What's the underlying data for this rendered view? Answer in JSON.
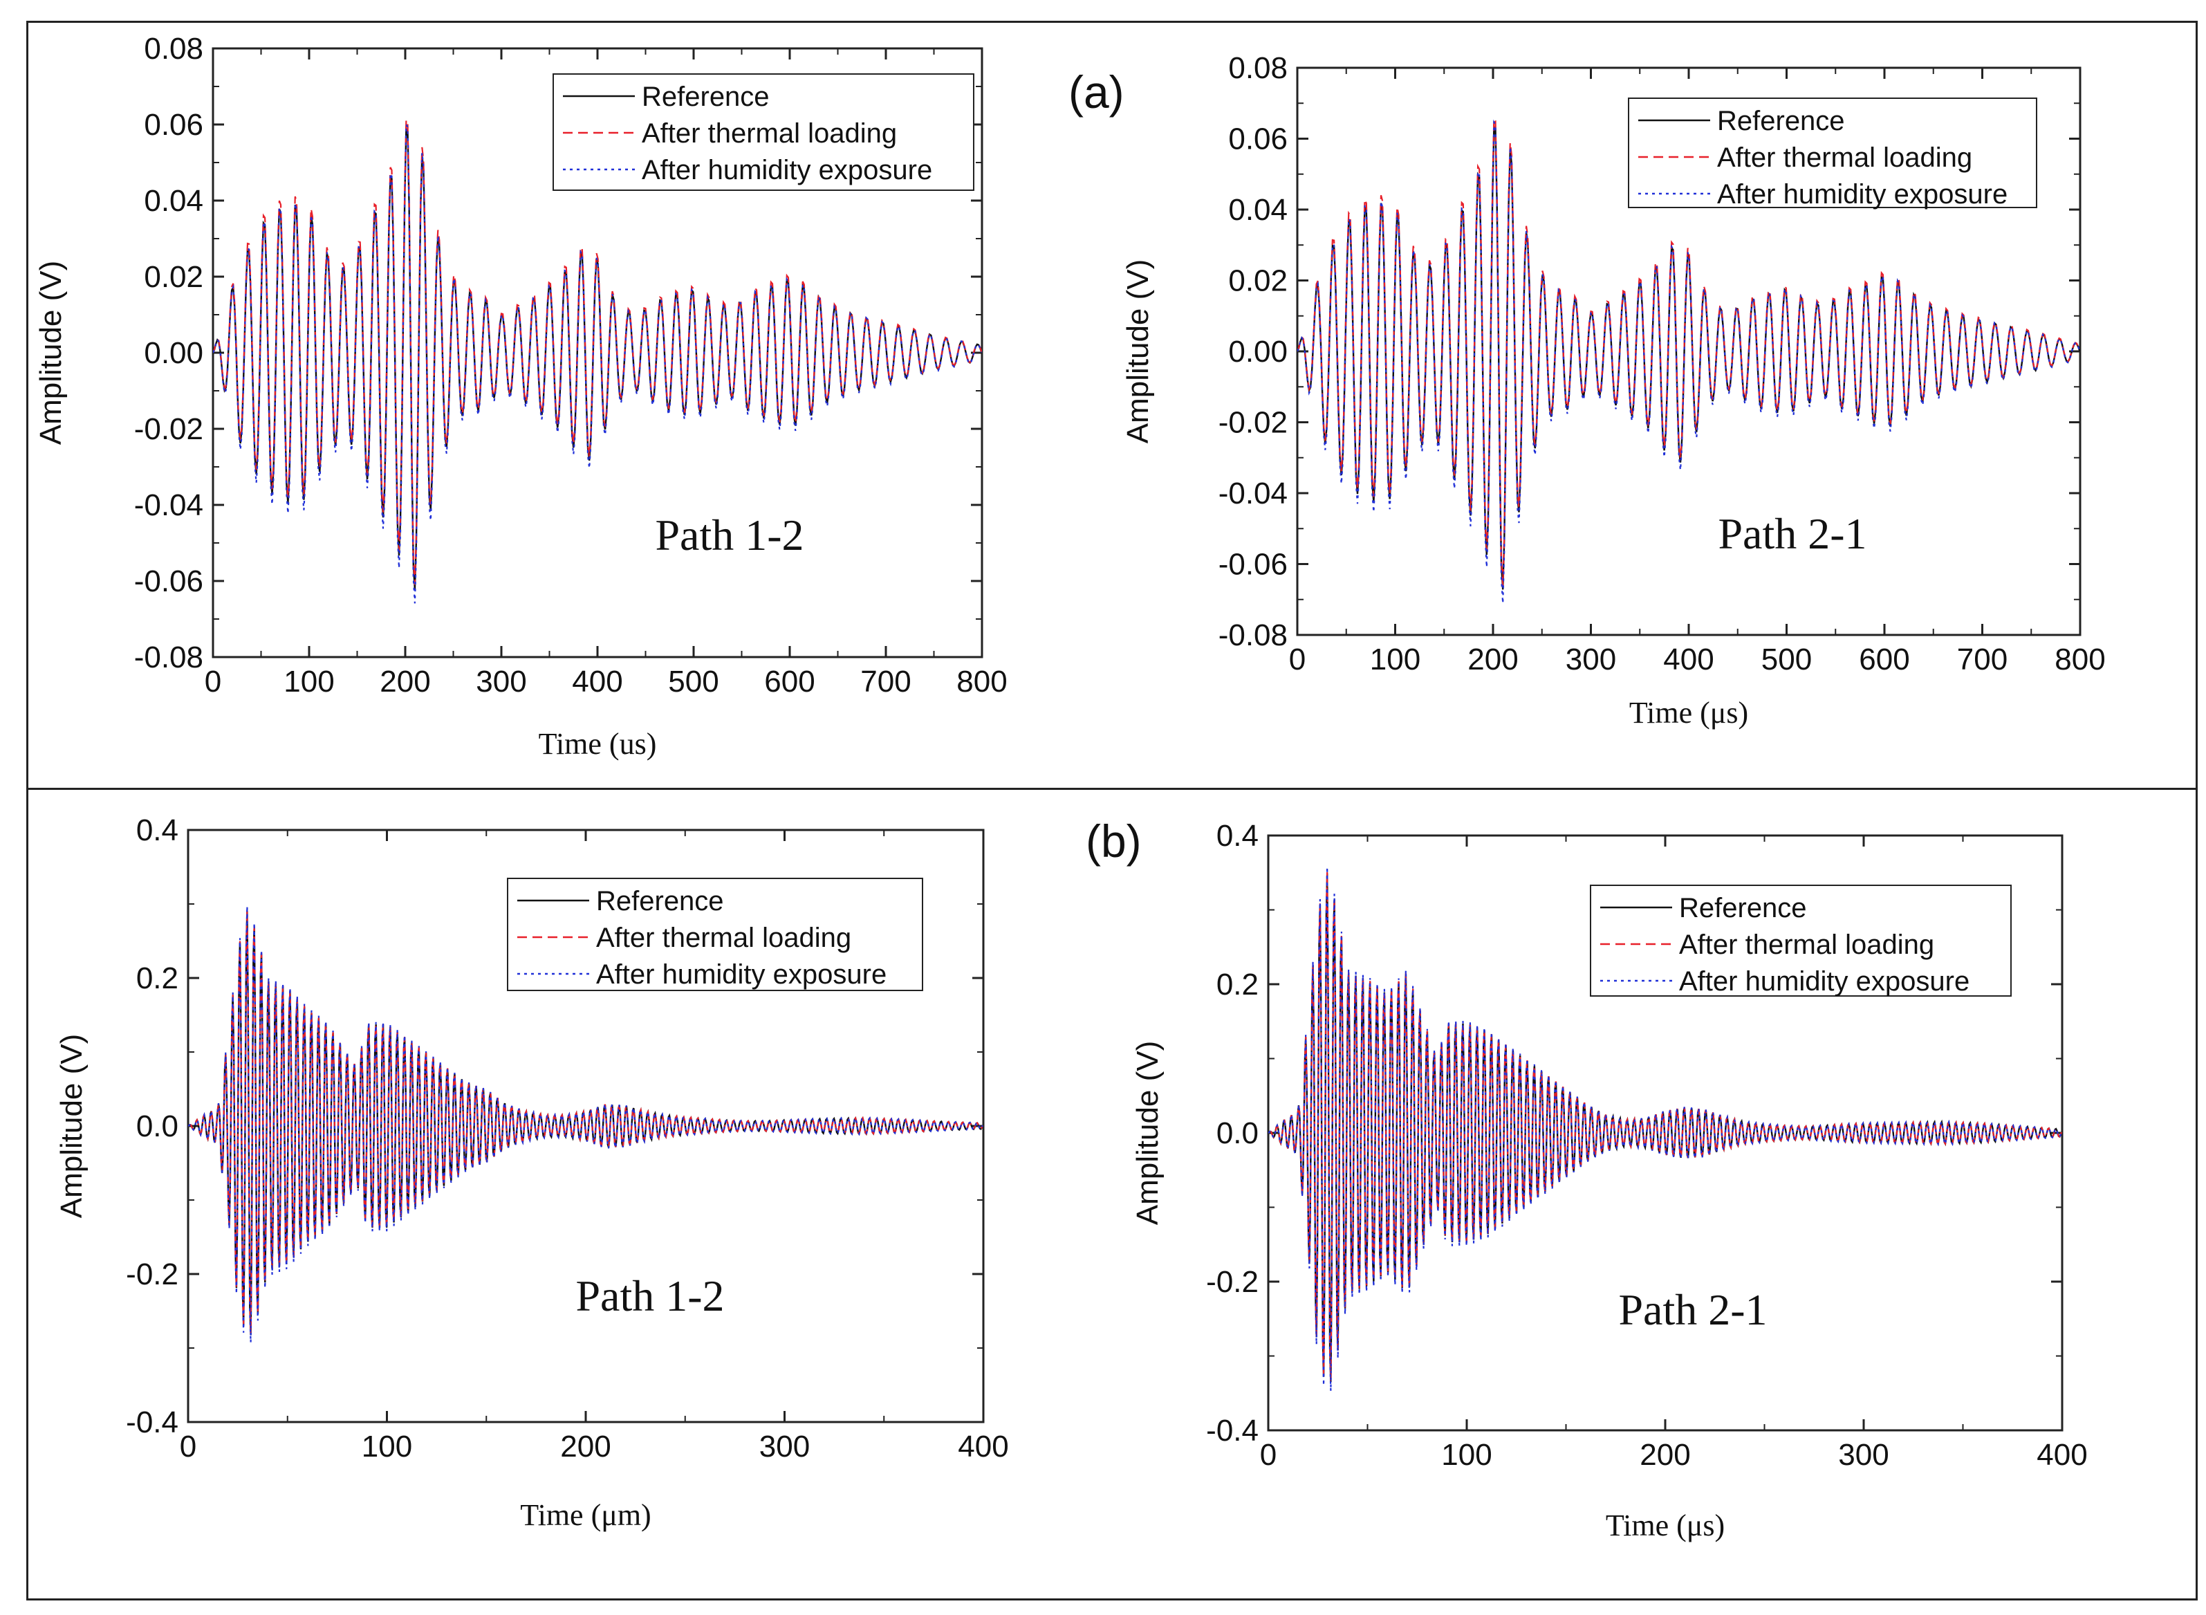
{
  "panel_labels": {
    "a": "(a)",
    "b": "(b)"
  },
  "colors": {
    "reference": "#111111",
    "thermal": "#e8202a",
    "humidity": "#2030d8",
    "axis": "#222222"
  },
  "chart_data": [
    {
      "id": "a-left",
      "type": "line",
      "title": "",
      "xlabel": "Time (us)",
      "ylabel": "Amplitude (V)",
      "xlim": [
        0,
        800
      ],
      "ylim": [
        -0.08,
        0.08
      ],
      "xticks": [
        0,
        100,
        200,
        300,
        400,
        500,
        600,
        700,
        800
      ],
      "xtick_labels": [
        "0",
        "100",
        "200",
        "300",
        "400",
        "500",
        "600",
        "700",
        "800"
      ],
      "yticks": [
        -0.08,
        -0.06,
        -0.04,
        -0.02,
        0,
        0.02,
        0.04,
        0.06,
        0.08
      ],
      "ytick_labels": [
        "-0.08",
        "-0.06",
        "-0.04",
        "-0.02",
        "0.00",
        "0.02",
        "0.04",
        "0.06",
        "0.08"
      ],
      "annotation": "Path 1-2",
      "legend_position": "top-right",
      "series": [
        {
          "name": "Reference",
          "style": "solid"
        },
        {
          "name": "After thermal loading",
          "style": "dashed"
        },
        {
          "name": "After humidity exposure",
          "style": "dotted"
        }
      ],
      "waveform": {
        "period": 16.5,
        "sample_step": 1.5,
        "envelope_t": [
          0,
          10,
          25,
          40,
          55,
          70,
          85,
          100,
          120,
          140,
          160,
          178,
          192,
          207,
          220,
          235,
          255,
          280,
          300,
          330,
          360,
          375,
          390,
          400,
          420,
          440,
          470,
          500,
          520,
          540,
          560,
          580,
          600,
          615,
          640,
          670,
          700,
          730,
          760,
          800
        ],
        "envelope_a": [
          0,
          0.008,
          0.022,
          0.03,
          0.036,
          0.039,
          0.04,
          0.038,
          0.026,
          0.022,
          0.033,
          0.044,
          0.052,
          0.066,
          0.05,
          0.03,
          0.017,
          0.015,
          0.01,
          0.014,
          0.02,
          0.025,
          0.029,
          0.025,
          0.013,
          0.01,
          0.015,
          0.017,
          0.014,
          0.012,
          0.016,
          0.018,
          0.02,
          0.018,
          0.013,
          0.01,
          0.008,
          0.006,
          0.004,
          0.002
        ],
        "offsets": [
          0,
          0.0018,
          -0.0012
        ],
        "scales": [
          1,
          1.01,
          1.04
        ]
      }
    },
    {
      "id": "a-right",
      "type": "line",
      "title": "",
      "xlabel": "Time (μs)",
      "ylabel": "Amplitude (V)",
      "xlim": [
        0,
        800
      ],
      "ylim": [
        -0.08,
        0.08
      ],
      "xticks": [
        0,
        100,
        200,
        300,
        400,
        500,
        600,
        700,
        800
      ],
      "xtick_labels": [
        "0",
        "100",
        "200",
        "300",
        "400",
        "500",
        "600",
        "700",
        "800"
      ],
      "yticks": [
        -0.08,
        -0.06,
        -0.04,
        -0.02,
        0,
        0.02,
        0.04,
        0.06,
        0.08
      ],
      "ytick_labels": [
        "-0.08",
        "-0.06",
        "-0.04",
        "-0.02",
        "0.00",
        "0.02",
        "0.04",
        "0.06",
        "0.08"
      ],
      "annotation": "Path 2-1",
      "legend_position": "top-right",
      "series": [
        {
          "name": "Reference",
          "style": "solid"
        },
        {
          "name": "After thermal loading",
          "style": "dashed"
        },
        {
          "name": "After humidity exposure",
          "style": "dotted"
        }
      ],
      "waveform": {
        "period": 16.5,
        "sample_step": 1.5,
        "envelope_t": [
          0,
          10,
          25,
          40,
          55,
          70,
          85,
          100,
          120,
          140,
          160,
          178,
          192,
          207,
          220,
          235,
          255,
          280,
          300,
          330,
          360,
          375,
          390,
          400,
          420,
          440,
          470,
          500,
          520,
          540,
          560,
          580,
          600,
          615,
          640,
          670,
          700,
          730,
          760,
          800
        ],
        "envelope_a": [
          0,
          0.009,
          0.024,
          0.033,
          0.039,
          0.042,
          0.043,
          0.041,
          0.028,
          0.024,
          0.036,
          0.047,
          0.056,
          0.071,
          0.055,
          0.033,
          0.019,
          0.016,
          0.011,
          0.016,
          0.022,
          0.028,
          0.032,
          0.028,
          0.015,
          0.011,
          0.016,
          0.018,
          0.015,
          0.013,
          0.017,
          0.019,
          0.022,
          0.02,
          0.014,
          0.011,
          0.009,
          0.007,
          0.005,
          0.002
        ],
        "offsets": [
          0,
          0.0018,
          -0.0012
        ],
        "scales": [
          1,
          1.01,
          1.04
        ]
      }
    },
    {
      "id": "b-left",
      "type": "line",
      "title": "",
      "xlabel": "Time (μm)",
      "ylabel": "Amplitude (V)",
      "xlim": [
        0,
        400
      ],
      "ylim": [
        -0.4,
        0.4
      ],
      "xticks": [
        0,
        100,
        200,
        300,
        400
      ],
      "xtick_labels": [
        "0",
        "100",
        "200",
        "300",
        "400"
      ],
      "yticks": [
        -0.4,
        -0.2,
        0,
        0.2,
        0.4
      ],
      "ytick_labels": [
        "-0.4",
        "-0.2",
        "0.0",
        "0.2",
        "0.4"
      ],
      "annotation": "Path 1-2",
      "legend_position": "top-right",
      "series": [
        {
          "name": "Reference",
          "style": "solid"
        },
        {
          "name": "After thermal loading",
          "style": "dashed"
        },
        {
          "name": "After humidity exposure",
          "style": "dotted"
        }
      ],
      "waveform": {
        "period": 3.6,
        "sample_step": 0.45,
        "envelope_t": [
          0,
          8,
          15,
          20,
          25,
          30,
          35,
          40,
          50,
          60,
          70,
          80,
          85,
          90,
          100,
          110,
          120,
          130,
          140,
          150,
          160,
          170,
          180,
          190,
          200,
          210,
          220,
          230,
          240,
          250,
          260,
          270,
          280,
          290,
          300,
          320,
          340,
          360,
          380,
          400
        ],
        "envelope_a": [
          0,
          0.015,
          0.025,
          0.12,
          0.24,
          0.3,
          0.26,
          0.2,
          0.19,
          0.16,
          0.14,
          0.1,
          0.08,
          0.14,
          0.14,
          0.12,
          0.1,
          0.08,
          0.06,
          0.05,
          0.03,
          0.02,
          0.015,
          0.015,
          0.02,
          0.03,
          0.028,
          0.02,
          0.015,
          0.012,
          0.01,
          0.008,
          0.007,
          0.007,
          0.008,
          0.01,
          0.011,
          0.009,
          0.006,
          0.004
        ],
        "offsets": [
          0,
          0.002,
          -0.002
        ],
        "scales": [
          1,
          1.0,
          1.03
        ]
      }
    },
    {
      "id": "b-right",
      "type": "line",
      "title": "",
      "xlabel": "Time (μs)",
      "ylabel": "Amplitude (V)",
      "xlim": [
        0,
        400
      ],
      "ylim": [
        -0.4,
        0.4
      ],
      "xticks": [
        0,
        100,
        200,
        300,
        400
      ],
      "xtick_labels": [
        "0",
        "100",
        "200",
        "300",
        "400"
      ],
      "yticks": [
        -0.4,
        -0.2,
        0,
        0.2,
        0.4
      ],
      "ytick_labels": [
        "-0.4",
        "-0.2",
        "0.0",
        "0.2",
        "0.4"
      ],
      "annotation": "Path 2-1",
      "legend_position": "top-right",
      "series": [
        {
          "name": "Reference",
          "style": "solid"
        },
        {
          "name": "After thermal loading",
          "style": "dashed"
        },
        {
          "name": "After humidity exposure",
          "style": "dotted"
        }
      ],
      "waveform": {
        "period": 3.6,
        "sample_step": 0.45,
        "envelope_t": [
          0,
          8,
          15,
          20,
          25,
          30,
          35,
          40,
          50,
          60,
          70,
          80,
          85,
          90,
          100,
          110,
          120,
          130,
          140,
          150,
          160,
          170,
          180,
          190,
          200,
          210,
          220,
          230,
          240,
          250,
          260,
          270,
          280,
          290,
          300,
          320,
          340,
          360,
          380,
          400
        ],
        "envelope_a": [
          0,
          0.018,
          0.03,
          0.16,
          0.3,
          0.36,
          0.3,
          0.22,
          0.21,
          0.19,
          0.22,
          0.14,
          0.1,
          0.15,
          0.15,
          0.14,
          0.12,
          0.1,
          0.08,
          0.06,
          0.04,
          0.025,
          0.018,
          0.02,
          0.03,
          0.035,
          0.032,
          0.022,
          0.015,
          0.012,
          0.01,
          0.009,
          0.01,
          0.012,
          0.013,
          0.014,
          0.015,
          0.013,
          0.009,
          0.005
        ],
        "offsets": [
          0,
          0.002,
          -0.002
        ],
        "scales": [
          1,
          1.0,
          1.03
        ]
      }
    }
  ]
}
